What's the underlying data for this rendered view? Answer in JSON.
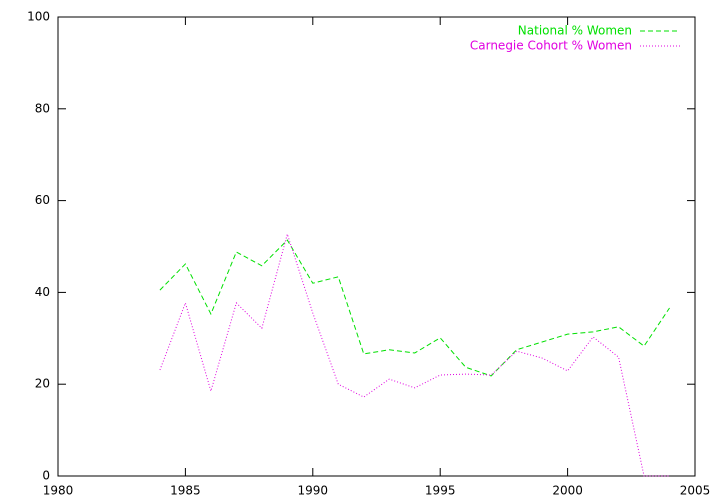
{
  "chart_data": {
    "type": "line",
    "x": [
      1984,
      1985,
      1986,
      1987,
      1988,
      1989,
      1990,
      1991,
      1992,
      1993,
      1994,
      1995,
      1996,
      1997,
      1998,
      1999,
      2000,
      2001,
      2002,
      2003,
      2004
    ],
    "series": [
      {
        "name": "National % Women",
        "color": "#00e000",
        "dash": "5,3",
        "values": [
          40.5,
          46.2,
          35.3,
          48.8,
          45.8,
          51.4,
          42.0,
          43.4,
          26.6,
          27.5,
          26.8,
          30.1,
          23.7,
          21.8,
          27.5,
          29.2,
          30.9,
          31.4,
          32.5,
          28.3,
          36.6
        ]
      },
      {
        "name": "Carnegie Cohort % Women",
        "color": "#e000e0",
        "dash": "1,2",
        "values": [
          23.1,
          37.7,
          18.5,
          37.7,
          32.2,
          52.7,
          35.5,
          20.0,
          17.2,
          21.1,
          19.2,
          22.0,
          22.2,
          22.0,
          27.2,
          25.7,
          22.9,
          30.3,
          25.9,
          0,
          0
        ]
      }
    ],
    "xlim": [
      1980,
      2005
    ],
    "xticks": [
      1980,
      1985,
      1990,
      1995,
      2000,
      2005
    ],
    "ylim": [
      0,
      100
    ],
    "yticks": [
      0,
      20,
      40,
      60,
      80,
      100
    ],
    "legend": "top-right"
  }
}
